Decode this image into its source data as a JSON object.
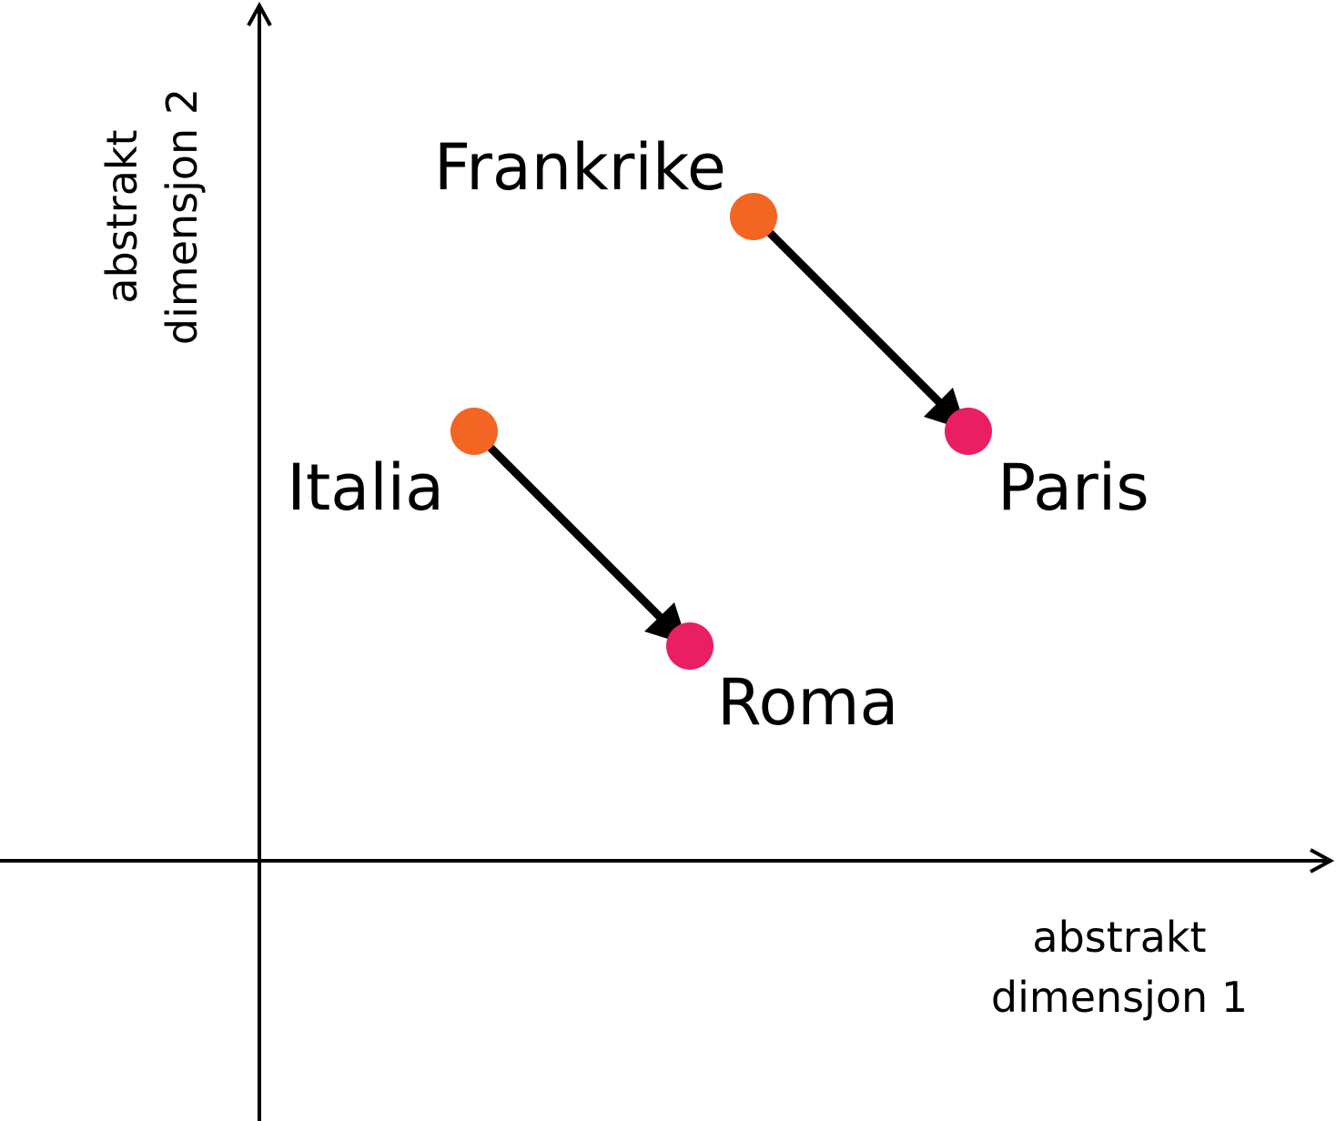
{
  "axes": {
    "x_label_line1": "abstrakt",
    "x_label_line2": "dimensjon 1",
    "y_label_line1": "abstrakt",
    "y_label_line2": "dimensjon 2"
  },
  "points": {
    "frankrike": {
      "label": "Frankrike",
      "color": "#f26522"
    },
    "paris": {
      "label": "Paris",
      "color": "#e91e63"
    },
    "italia": {
      "label": "Italia",
      "color": "#f26522"
    },
    "roma": {
      "label": "Roma",
      "color": "#e91e63"
    }
  },
  "arrows": [
    {
      "from": "Frankrike",
      "to": "Paris"
    },
    {
      "from": "Italia",
      "to": "Roma"
    }
  ],
  "colors": {
    "country": "#f26522",
    "capital": "#e91e63",
    "axis": "#000000",
    "arrow": "#000000"
  }
}
